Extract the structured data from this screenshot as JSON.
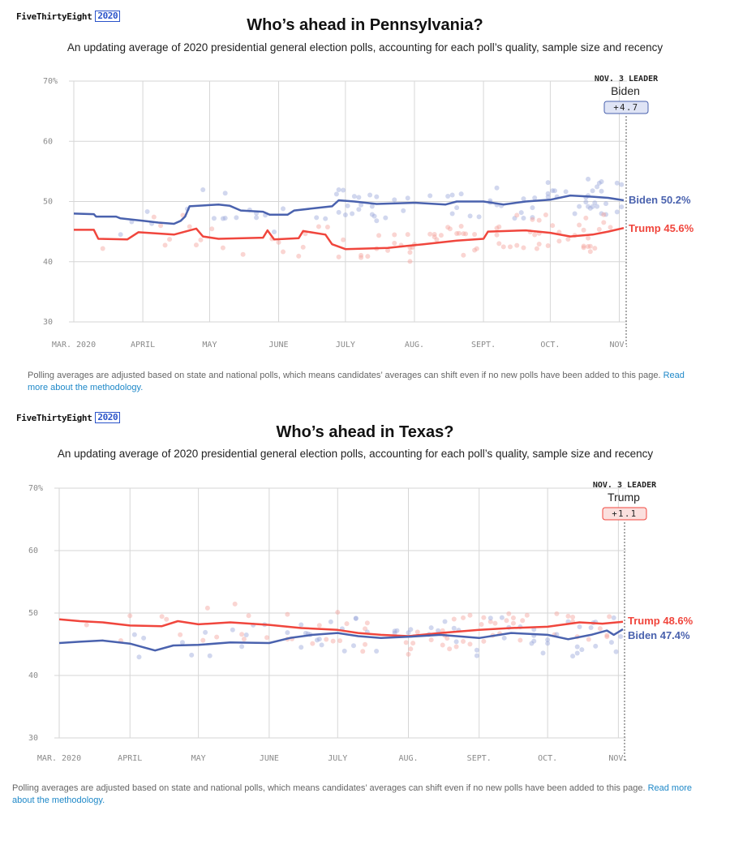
{
  "colors": {
    "biden": "#4a62ae",
    "trump": "#f0463d",
    "biden_dot": "#9aa7d9",
    "trump_dot": "#f5a29c",
    "grid": "#d6d6d6",
    "axis_text": "#8a8a8a",
    "leader_box_biden_bg": "#dfe4f5",
    "leader_box_trump_bg": "#fbe0de"
  },
  "charts": [
    {
      "brand": {
        "name": "FiveThirtyEight",
        "year": "2020"
      },
      "title": "Who’s ahead in Pennsylvania?",
      "subtitle": "An updating average of 2020 presidential general election polls, accounting for each poll’s quality, sample size and recency",
      "note": "Polling averages are adjusted based on state and national polls, which means candidates’ averages can shift even if no new polls have been added to this page.",
      "note_link": "Read more about the methodology.",
      "leader": {
        "label": "NOV. 3 LEADER",
        "name": "Biden",
        "margin": "+4.7",
        "party": "biden"
      }
    },
    {
      "brand": {
        "name": "FiveThirtyEight",
        "year": "2020"
      },
      "title": "Who’s ahead in Texas?",
      "subtitle": "An updating average of 2020 presidential general election polls, accounting for each poll’s quality, sample size and recency",
      "note": "Polling averages are adjusted based on state and national polls, which means candidates’ averages can shift even if no new polls have been added to this page.",
      "note_link": "Read more about the methodology.",
      "leader": {
        "label": "NOV. 3 LEADER",
        "name": "Trump",
        "margin": "+1.1",
        "party": "trump"
      }
    }
  ],
  "chart_data": [
    {
      "type": "line",
      "state": "Pennsylvania",
      "x_ticks": [
        "MAR. 2020",
        "APRIL",
        "MAY",
        "JUNE",
        "JULY",
        "AUG.",
        "SEPT.",
        "OCT.",
        "NOV."
      ],
      "y_ticks": [
        "70%",
        "60",
        "50",
        "40",
        "30"
      ],
      "ylim": [
        30,
        70
      ],
      "xlim": [
        "2020-03-01",
        "2020-11-03"
      ],
      "grid": true,
      "series": [
        {
          "name": "Biden",
          "end_label": "Biden 50.2%",
          "color": "#4a62ae",
          "values": [
            [
              "2020-03-01",
              48.0
            ],
            [
              "2020-03-10",
              47.9
            ],
            [
              "2020-03-11",
              47.5
            ],
            [
              "2020-03-20",
              47.5
            ],
            [
              "2020-03-22",
              47.2
            ],
            [
              "2020-04-01",
              46.8
            ],
            [
              "2020-04-08",
              46.5
            ],
            [
              "2020-04-15",
              46.3
            ],
            [
              "2020-04-18",
              46.8
            ],
            [
              "2020-04-20",
              47.5
            ],
            [
              "2020-04-22",
              49.2
            ],
            [
              "2020-05-05",
              49.5
            ],
            [
              "2020-05-10",
              49.3
            ],
            [
              "2020-05-15",
              48.5
            ],
            [
              "2020-05-25",
              48.3
            ],
            [
              "2020-05-28",
              47.8
            ],
            [
              "2020-06-05",
              47.8
            ],
            [
              "2020-06-08",
              48.5
            ],
            [
              "2020-06-20",
              49.0
            ],
            [
              "2020-06-25",
              49.2
            ],
            [
              "2020-06-28",
              50.2
            ],
            [
              "2020-07-05",
              50.0
            ],
            [
              "2020-07-15",
              49.6
            ],
            [
              "2020-08-01",
              49.8
            ],
            [
              "2020-08-15",
              49.5
            ],
            [
              "2020-08-20",
              50.0
            ],
            [
              "2020-09-01",
              50.0
            ],
            [
              "2020-09-10",
              49.5
            ],
            [
              "2020-09-20",
              50.0
            ],
            [
              "2020-10-01",
              50.3
            ],
            [
              "2020-10-10",
              51.0
            ],
            [
              "2020-10-20",
              50.8
            ],
            [
              "2020-10-27",
              50.6
            ],
            [
              "2020-11-03",
              50.2
            ]
          ]
        },
        {
          "name": "Trump",
          "end_label": "Trump 45.6%",
          "color": "#f0463d",
          "values": [
            [
              "2020-03-01",
              45.3
            ],
            [
              "2020-03-10",
              45.3
            ],
            [
              "2020-03-12",
              43.8
            ],
            [
              "2020-03-25",
              43.7
            ],
            [
              "2020-03-30",
              44.9
            ],
            [
              "2020-04-15",
              44.5
            ],
            [
              "2020-04-25",
              45.5
            ],
            [
              "2020-04-28",
              44.2
            ],
            [
              "2020-05-05",
              43.8
            ],
            [
              "2020-05-25",
              44.0
            ],
            [
              "2020-05-27",
              45.2
            ],
            [
              "2020-05-30",
              43.7
            ],
            [
              "2020-06-10",
              43.9
            ],
            [
              "2020-06-12",
              45.1
            ],
            [
              "2020-06-22",
              44.5
            ],
            [
              "2020-06-25",
              42.9
            ],
            [
              "2020-07-01",
              42.1
            ],
            [
              "2020-07-20",
              42.3
            ],
            [
              "2020-08-05",
              42.9
            ],
            [
              "2020-08-20",
              43.5
            ],
            [
              "2020-09-01",
              43.8
            ],
            [
              "2020-09-03",
              45.0
            ],
            [
              "2020-09-20",
              45.2
            ],
            [
              "2020-10-01",
              44.8
            ],
            [
              "2020-10-10",
              44.2
            ],
            [
              "2020-10-20",
              44.5
            ],
            [
              "2020-10-27",
              45.0
            ],
            [
              "2020-11-03",
              45.6
            ]
          ]
        }
      ]
    },
    {
      "type": "line",
      "state": "Texas",
      "x_ticks": [
        "MAR. 2020",
        "APRIL",
        "MAY",
        "JUNE",
        "JULY",
        "AUG.",
        "SEPT.",
        "OCT.",
        "NOV."
      ],
      "y_ticks": [
        "70%",
        "60",
        "50",
        "40",
        "30"
      ],
      "ylim": [
        30,
        70
      ],
      "xlim": [
        "2020-03-01",
        "2020-11-03"
      ],
      "grid": true,
      "series": [
        {
          "name": "Trump",
          "end_label": "Trump 48.6%",
          "color": "#f0463d",
          "values": [
            [
              "2020-03-01",
              49.0
            ],
            [
              "2020-03-10",
              48.7
            ],
            [
              "2020-03-20",
              48.5
            ],
            [
              "2020-04-01",
              48.0
            ],
            [
              "2020-04-15",
              47.9
            ],
            [
              "2020-04-22",
              48.7
            ],
            [
              "2020-05-01",
              48.2
            ],
            [
              "2020-05-15",
              48.5
            ],
            [
              "2020-06-01",
              48.1
            ],
            [
              "2020-06-15",
              47.6
            ],
            [
              "2020-07-01",
              47.3
            ],
            [
              "2020-07-10",
              46.8
            ],
            [
              "2020-07-20",
              46.5
            ],
            [
              "2020-08-01",
              46.3
            ],
            [
              "2020-08-15",
              46.8
            ],
            [
              "2020-09-01",
              47.3
            ],
            [
              "2020-09-15",
              47.6
            ],
            [
              "2020-10-01",
              47.8
            ],
            [
              "2020-10-15",
              48.5
            ],
            [
              "2020-10-25",
              48.3
            ],
            [
              "2020-11-03",
              48.6
            ]
          ]
        },
        {
          "name": "Biden",
          "end_label": "Biden 47.4%",
          "color": "#4a62ae",
          "values": [
            [
              "2020-03-01",
              45.2
            ],
            [
              "2020-03-10",
              45.4
            ],
            [
              "2020-03-20",
              45.6
            ],
            [
              "2020-04-01",
              45.1
            ],
            [
              "2020-04-12",
              44.0
            ],
            [
              "2020-04-20",
              44.8
            ],
            [
              "2020-05-01",
              44.9
            ],
            [
              "2020-05-15",
              45.3
            ],
            [
              "2020-06-01",
              45.2
            ],
            [
              "2020-06-10",
              46.0
            ],
            [
              "2020-06-20",
              46.5
            ],
            [
              "2020-07-01",
              46.8
            ],
            [
              "2020-07-10",
              46.3
            ],
            [
              "2020-07-20",
              46.0
            ],
            [
              "2020-08-01",
              46.2
            ],
            [
              "2020-08-15",
              46.5
            ],
            [
              "2020-09-01",
              46.0
            ],
            [
              "2020-09-15",
              46.8
            ],
            [
              "2020-10-01",
              46.5
            ],
            [
              "2020-10-10",
              45.8
            ],
            [
              "2020-10-20",
              46.5
            ],
            [
              "2020-10-27",
              47.2
            ],
            [
              "2020-10-30",
              46.5
            ],
            [
              "2020-11-03",
              47.4
            ]
          ]
        }
      ]
    }
  ]
}
